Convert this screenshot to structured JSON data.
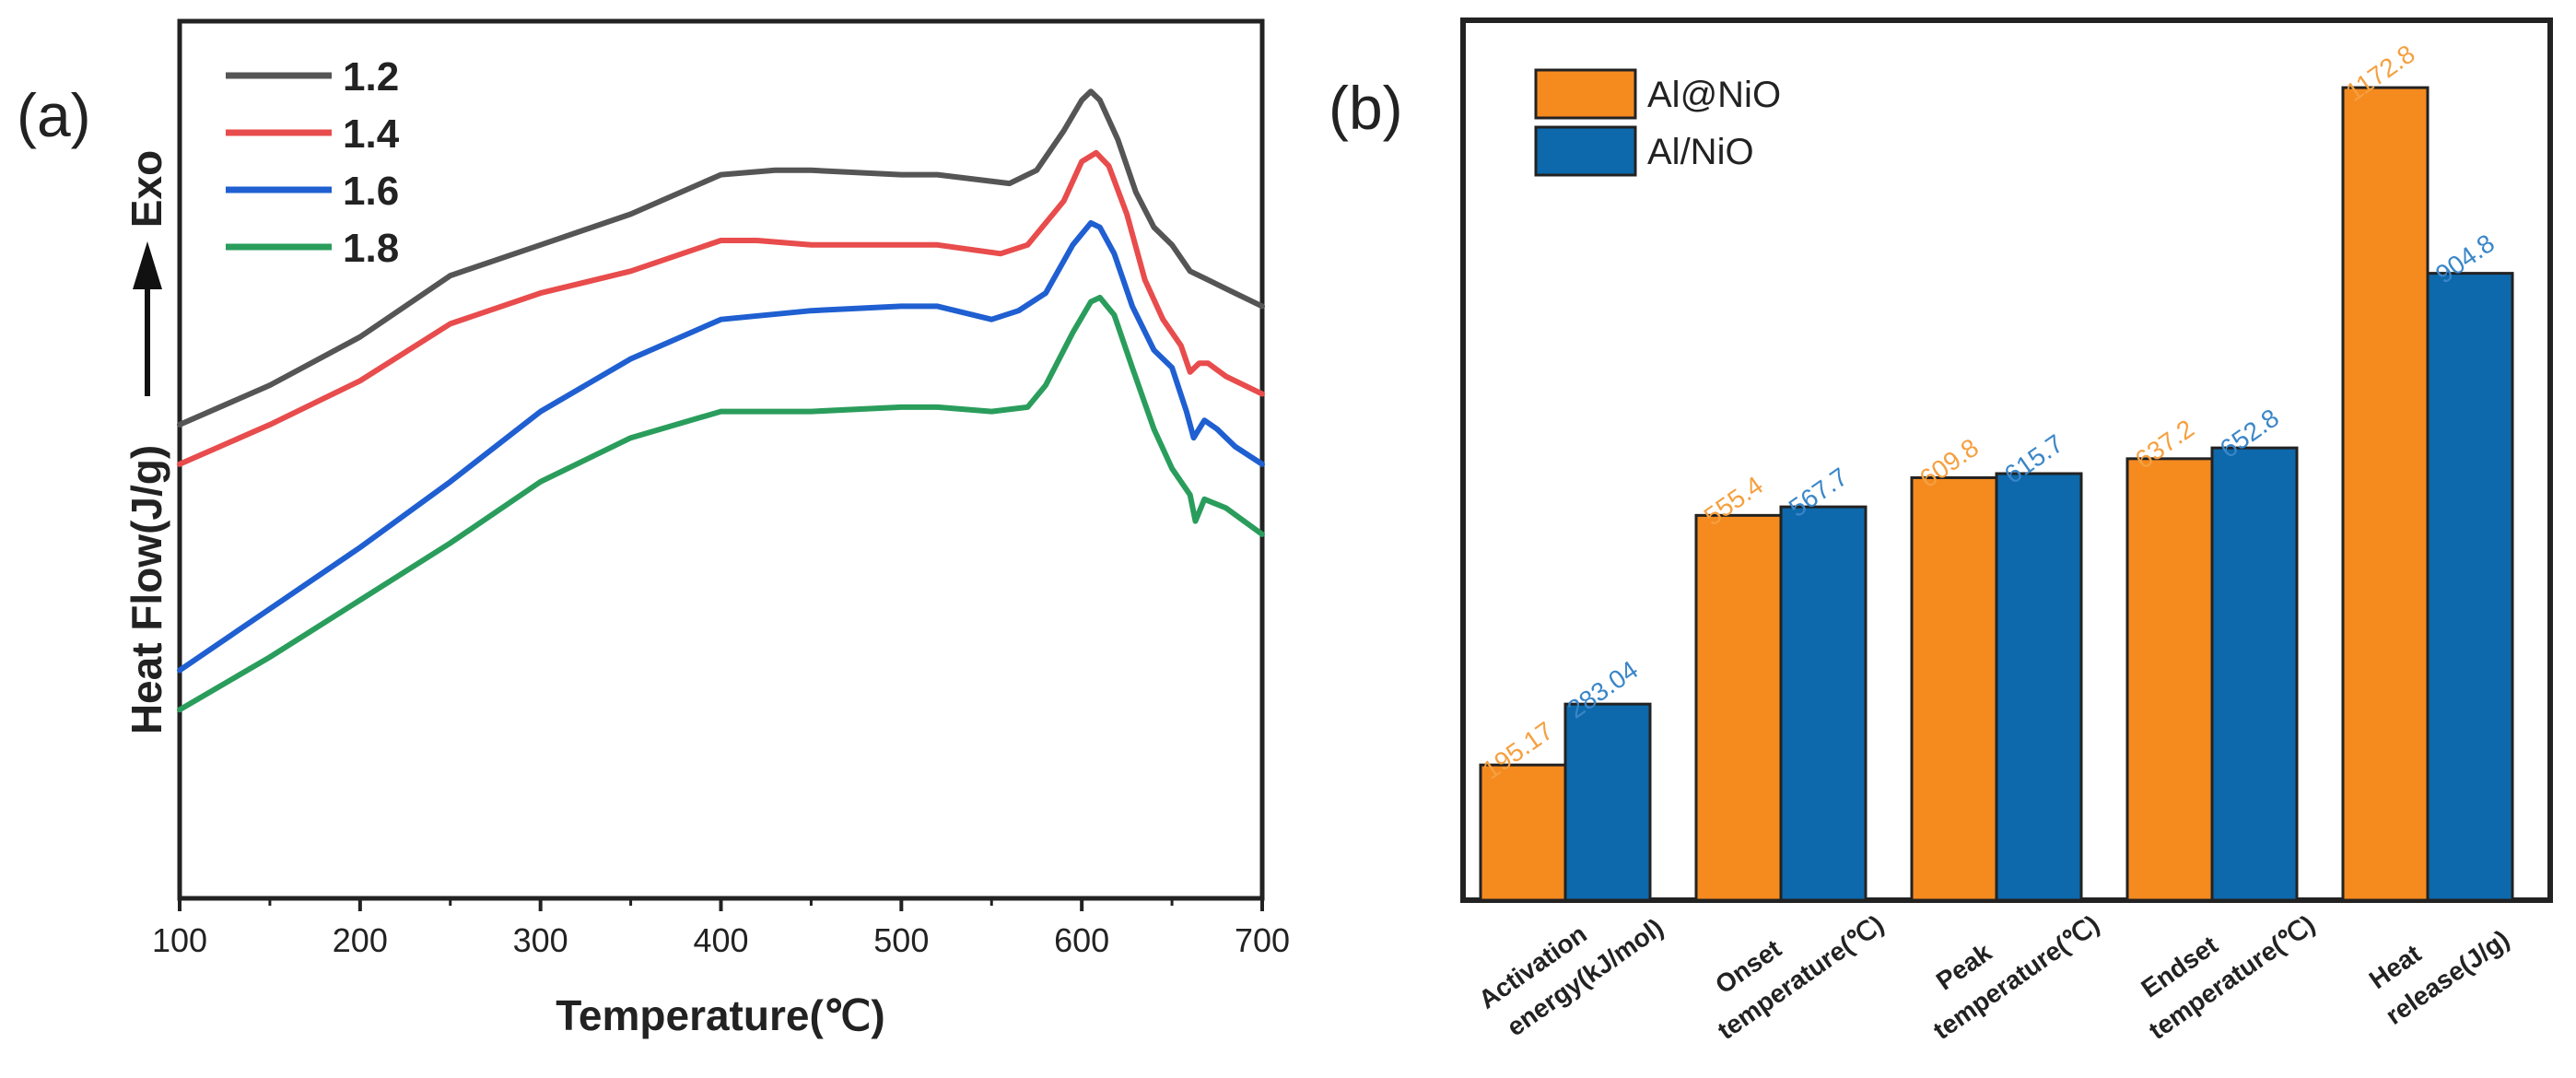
{
  "chart_data": [
    {
      "panel_label": "(a)",
      "type": "line",
      "xlabel": "Temperature(℃)",
      "ylabel": "Heat Flow(J/g)",
      "exo_label": "Exo",
      "xlim": [
        100,
        700
      ],
      "xticks": [
        100,
        200,
        300,
        400,
        500,
        600,
        700
      ],
      "y_axis_ticks": false,
      "legend_position": "top-left",
      "series": [
        {
          "name": "1.2",
          "color": "#555555",
          "x": [
            100,
            150,
            200,
            250,
            300,
            350,
            400,
            430,
            450,
            500,
            520,
            560,
            575,
            590,
            600,
            605,
            610,
            620,
            630,
            640,
            650,
            660,
            670,
            680,
            700
          ],
          "y": [
            5.4,
            5.85,
            6.4,
            7.1,
            7.45,
            7.8,
            8.25,
            8.3,
            8.3,
            8.25,
            8.25,
            8.15,
            8.3,
            8.75,
            9.1,
            9.2,
            9.1,
            8.65,
            8.05,
            7.65,
            7.45,
            7.15,
            7.05,
            6.95,
            6.75
          ]
        },
        {
          "name": "1.4",
          "color": "#e84c4c",
          "x": [
            100,
            150,
            200,
            250,
            300,
            350,
            400,
            420,
            450,
            500,
            520,
            555,
            570,
            590,
            600,
            608,
            615,
            625,
            635,
            645,
            655,
            660,
            665,
            670,
            680,
            700
          ],
          "y": [
            4.95,
            5.4,
            5.9,
            6.55,
            6.9,
            7.15,
            7.5,
            7.5,
            7.45,
            7.45,
            7.45,
            7.35,
            7.45,
            7.95,
            8.4,
            8.5,
            8.35,
            7.8,
            7.05,
            6.6,
            6.3,
            6.0,
            6.1,
            6.1,
            5.95,
            5.75
          ]
        },
        {
          "name": "1.6",
          "color": "#1f5fd1",
          "x": [
            100,
            150,
            200,
            250,
            300,
            350,
            400,
            450,
            500,
            520,
            550,
            565,
            580,
            595,
            605,
            610,
            618,
            628,
            640,
            650,
            658,
            662,
            668,
            675,
            685,
            700
          ],
          "y": [
            2.6,
            3.3,
            4.0,
            4.75,
            5.55,
            6.15,
            6.6,
            6.7,
            6.75,
            6.75,
            6.6,
            6.7,
            6.9,
            7.45,
            7.7,
            7.65,
            7.35,
            6.75,
            6.25,
            6.05,
            5.55,
            5.25,
            5.45,
            5.35,
            5.15,
            4.95
          ]
        },
        {
          "name": "1.8",
          "color": "#2a9d5c",
          "x": [
            100,
            150,
            200,
            250,
            300,
            320,
            350,
            400,
            450,
            500,
            520,
            550,
            570,
            580,
            595,
            605,
            610,
            618,
            628,
            640,
            650,
            660,
            663,
            668,
            680,
            700
          ],
          "y": [
            2.15,
            2.75,
            3.4,
            4.05,
            4.75,
            4.95,
            5.25,
            5.55,
            5.55,
            5.6,
            5.6,
            5.55,
            5.6,
            5.85,
            6.45,
            6.8,
            6.85,
            6.65,
            6.05,
            5.35,
            4.9,
            4.6,
            4.3,
            4.55,
            4.45,
            4.15
          ]
        }
      ]
    },
    {
      "panel_label": "(b)",
      "type": "bar",
      "categories": [
        "Activation energy(kJ/mol)",
        "Onset temperature(℃)",
        "Peak temperature(℃)",
        "Endset temperature(℃)",
        "Heat release(J/g)"
      ],
      "category_lines": [
        [
          "Activation",
          "energy(kJ/mol)"
        ],
        [
          "Onset",
          "temperature(℃)"
        ],
        [
          "Peak",
          "temperature(℃)"
        ],
        [
          "Endset",
          "temperature(℃)"
        ],
        [
          "Heat",
          "release(J/g)"
        ]
      ],
      "series": [
        {
          "name": "Al@NiO",
          "color": "#f58a1f",
          "label_color": "#f5a040",
          "values": [
            195.17,
            555.4,
            609.8,
            637.2,
            1172.8
          ],
          "labels": [
            "195.17",
            "555.4",
            "609.8",
            "637.2",
            "1172.8"
          ]
        },
        {
          "name": "Al/NiO",
          "color": "#0d69ab",
          "label_color": "#3a86c8",
          "values": [
            283.04,
            567.7,
            615.7,
            652.8,
            904.8
          ],
          "labels": [
            "283.04",
            "567.7",
            "615.7",
            "652.8",
            "904.8"
          ]
        }
      ],
      "ylim": [
        0,
        1270
      ],
      "y_axis_ticks": false,
      "legend_position": "top-left"
    }
  ]
}
